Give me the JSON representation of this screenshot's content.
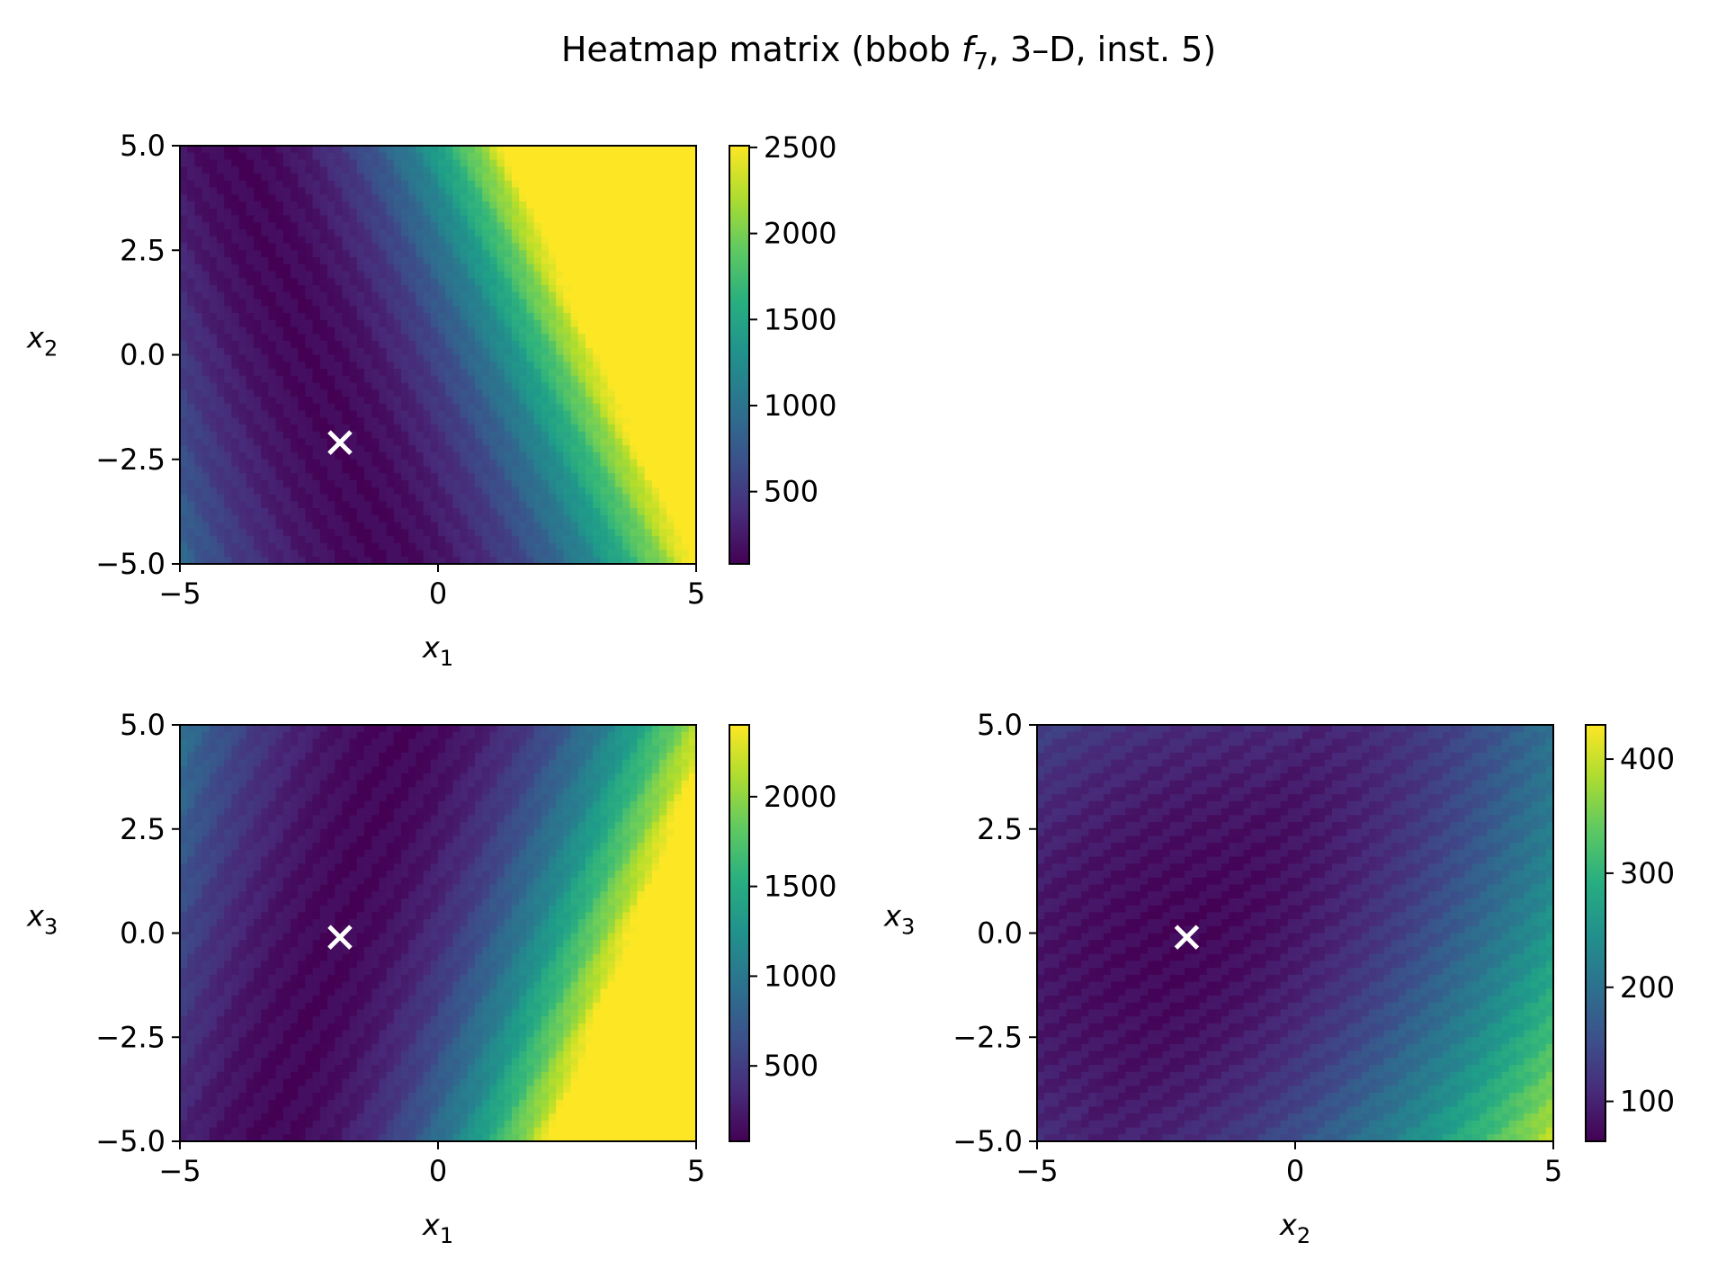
{
  "title": {
    "prefix": "Heatmap matrix (bbob ",
    "f_symbol": "f",
    "f_sub": "7",
    "suffix": ", 3–D, inst. 5)"
  },
  "colormap": "viridis",
  "marker_color": "#ffffff",
  "chart_data": [
    {
      "type": "heatmap",
      "id": "x1-x2",
      "x_var": "x",
      "x_sub": "1",
      "y_var": "x",
      "y_sub": "2",
      "xlim": [
        -5,
        5
      ],
      "ylim": [
        -5,
        5
      ],
      "xticks": [
        -5,
        0,
        5
      ],
      "xtick_labels": [
        "−5",
        "0",
        "5"
      ],
      "yticks": [
        -5,
        -2.5,
        0,
        2.5,
        5
      ],
      "ytick_labels": [
        "−5.0",
        "−2.5",
        "0.0",
        "2.5",
        "5.0"
      ],
      "colorbar": {
        "range": [
          80,
          2510
        ],
        "ticks": [
          500,
          1000,
          1500,
          2000,
          2500
        ],
        "tick_labels": [
          "500",
          "1000",
          "1500",
          "2000",
          "2500"
        ]
      },
      "optimum": [
        -1.9,
        -2.1
      ]
    },
    {
      "type": "heatmap",
      "id": "x1-x3",
      "x_var": "x",
      "x_sub": "1",
      "y_var": "x",
      "y_sub": "3",
      "xlim": [
        -5,
        5
      ],
      "ylim": [
        -5,
        5
      ],
      "xticks": [
        -5,
        0,
        5
      ],
      "xtick_labels": [
        "−5",
        "0",
        "5"
      ],
      "yticks": [
        -5,
        -2.5,
        0,
        2.5,
        5
      ],
      "ytick_labels": [
        "−5.0",
        "−2.5",
        "0.0",
        "2.5",
        "5.0"
      ],
      "colorbar": {
        "range": [
          80,
          2400
        ],
        "ticks": [
          500,
          1000,
          1500,
          2000
        ],
        "tick_labels": [
          "500",
          "1000",
          "1500",
          "2000"
        ]
      },
      "optimum": [
        -1.9,
        -0.1
      ]
    },
    {
      "type": "heatmap",
      "id": "x2-x3",
      "x_var": "x",
      "x_sub": "2",
      "y_var": "x",
      "y_sub": "3",
      "xlim": [
        -5,
        5
      ],
      "ylim": [
        -5,
        5
      ],
      "xticks": [
        -5,
        0,
        5
      ],
      "xtick_labels": [
        "−5",
        "0",
        "5"
      ],
      "yticks": [
        -5,
        -2.5,
        0,
        2.5,
        5
      ],
      "ytick_labels": [
        "−5.0",
        "−2.5",
        "0.0",
        "2.5",
        "5.0"
      ],
      "colorbar": {
        "range": [
          65,
          430
        ],
        "ticks": [
          100,
          200,
          300,
          400
        ],
        "tick_labels": [
          "100",
          "200",
          "300",
          "400"
        ]
      },
      "optimum": [
        -2.1,
        -0.1
      ]
    }
  ]
}
